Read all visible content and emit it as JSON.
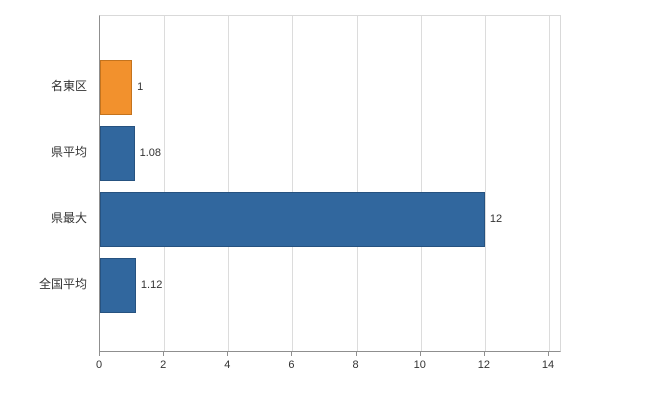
{
  "chart_data": {
    "type": "bar",
    "orientation": "horizontal",
    "title": "",
    "categories": [
      "名東区",
      "県平均",
      "県最大",
      "全国平均"
    ],
    "values": [
      1,
      1.08,
      12,
      1.12
    ],
    "value_labels": [
      "1",
      "1.08",
      "12",
      "1.12"
    ],
    "bar_colors": [
      "#f2912d",
      "#31679e",
      "#31679e",
      "#31679e"
    ],
    "bar_border_colors": [
      "#c4731d",
      "#265280",
      "#265280",
      "#265280"
    ],
    "xlim": [
      0,
      14
    ],
    "xticks": [
      0,
      2,
      4,
      6,
      8,
      10,
      12,
      14
    ],
    "grid": "vertical",
    "legend": false,
    "colors": {
      "grid": "#dcdcdc",
      "axis": "#8f8f8f",
      "text": "#333333",
      "background": "#ffffff"
    }
  }
}
